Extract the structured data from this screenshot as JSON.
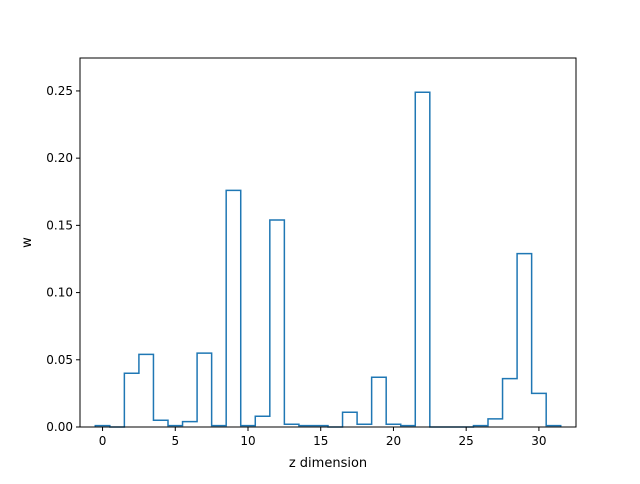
{
  "chart_data": {
    "type": "bar",
    "style": "step-histogram",
    "xlabel": "z dimension",
    "ylabel": "w",
    "xlim": [
      -1.55,
      32.55
    ],
    "ylim": [
      0,
      0.2745
    ],
    "xticks": [
      0,
      5,
      10,
      15,
      20,
      25,
      30
    ],
    "yticks": [
      0.0,
      0.05,
      0.1,
      0.15,
      0.2,
      0.25
    ],
    "xtick_labels": [
      "0",
      "5",
      "10",
      "15",
      "20",
      "25",
      "30"
    ],
    "ytick_labels": [
      "0.00",
      "0.05",
      "0.10",
      "0.15",
      "0.20",
      "0.25"
    ],
    "grid": false,
    "line_color": "#1f77b4",
    "x": [
      0,
      1,
      2,
      3,
      4,
      5,
      6,
      7,
      8,
      9,
      10,
      11,
      12,
      13,
      14,
      15,
      16,
      17,
      18,
      19,
      20,
      21,
      22,
      23,
      24,
      25,
      26,
      27,
      28,
      29,
      30,
      31
    ],
    "values": [
      0.001,
      0.0,
      0.04,
      0.054,
      0.005,
      0.001,
      0.004,
      0.055,
      0.001,
      0.176,
      0.001,
      0.008,
      0.154,
      0.002,
      0.001,
      0.001,
      0.0,
      0.011,
      0.002,
      0.037,
      0.002,
      0.001,
      0.249,
      0.0,
      0.0,
      0.0,
      0.001,
      0.006,
      0.036,
      0.129,
      0.025,
      0.001
    ]
  }
}
